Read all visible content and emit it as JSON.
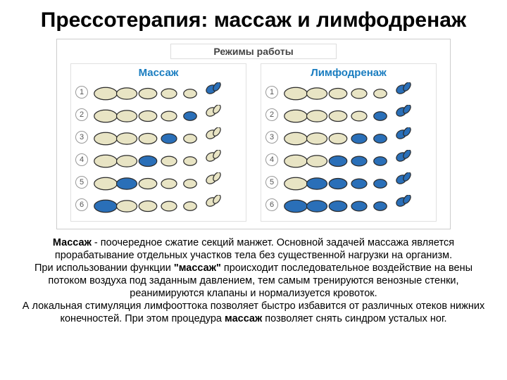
{
  "title": "Прессотерапия: массаж и лимфодренаж",
  "diagram": {
    "modes_label": "Режимы работы",
    "panels": [
      {
        "title": "Массаж",
        "title_color": "#1a7dc0",
        "rows": [
          "1",
          "2",
          "3",
          "4",
          "5",
          "6"
        ],
        "fill_pattern": "single"
      },
      {
        "title": "Лимфодренаж",
        "title_color": "#1a7dc0",
        "rows": [
          "1",
          "2",
          "3",
          "4",
          "5",
          "6"
        ],
        "fill_pattern": "cumulative"
      }
    ],
    "colors": {
      "outline": "#2a2a2a",
      "inactive": "#e8e4c4",
      "active": "#2a6fb8",
      "panel_border": "#e0e0e0"
    },
    "segments": 6
  },
  "description_parts": [
    {
      "bold": true,
      "text": "Массаж"
    },
    {
      "bold": false,
      "text": " - поочередное сжатие секций манжет. Основной задачей массажа является прорабатывание отдельных участков тела без существенной нагрузки на организм."
    },
    {
      "br": true
    },
    {
      "bold": false,
      "text": "При использовании функции "
    },
    {
      "bold": true,
      "text": "\"массаж\""
    },
    {
      "bold": false,
      "text": " происходит последовательное воздействие на вены потоком воздуха под заданным давлением, тем самым тренируются венозные стенки, реанимируются клапаны и нормализуется кровоток."
    },
    {
      "br": true
    },
    {
      "bold": false,
      "text": "А локальная стимуляция лимфооттока позволяет быстро избавится от различных отеков нижних конечностей. При этом процедура "
    },
    {
      "bold": true,
      "text": "массаж"
    },
    {
      "bold": false,
      "text": " позволяет снять синдром усталых ног."
    }
  ]
}
